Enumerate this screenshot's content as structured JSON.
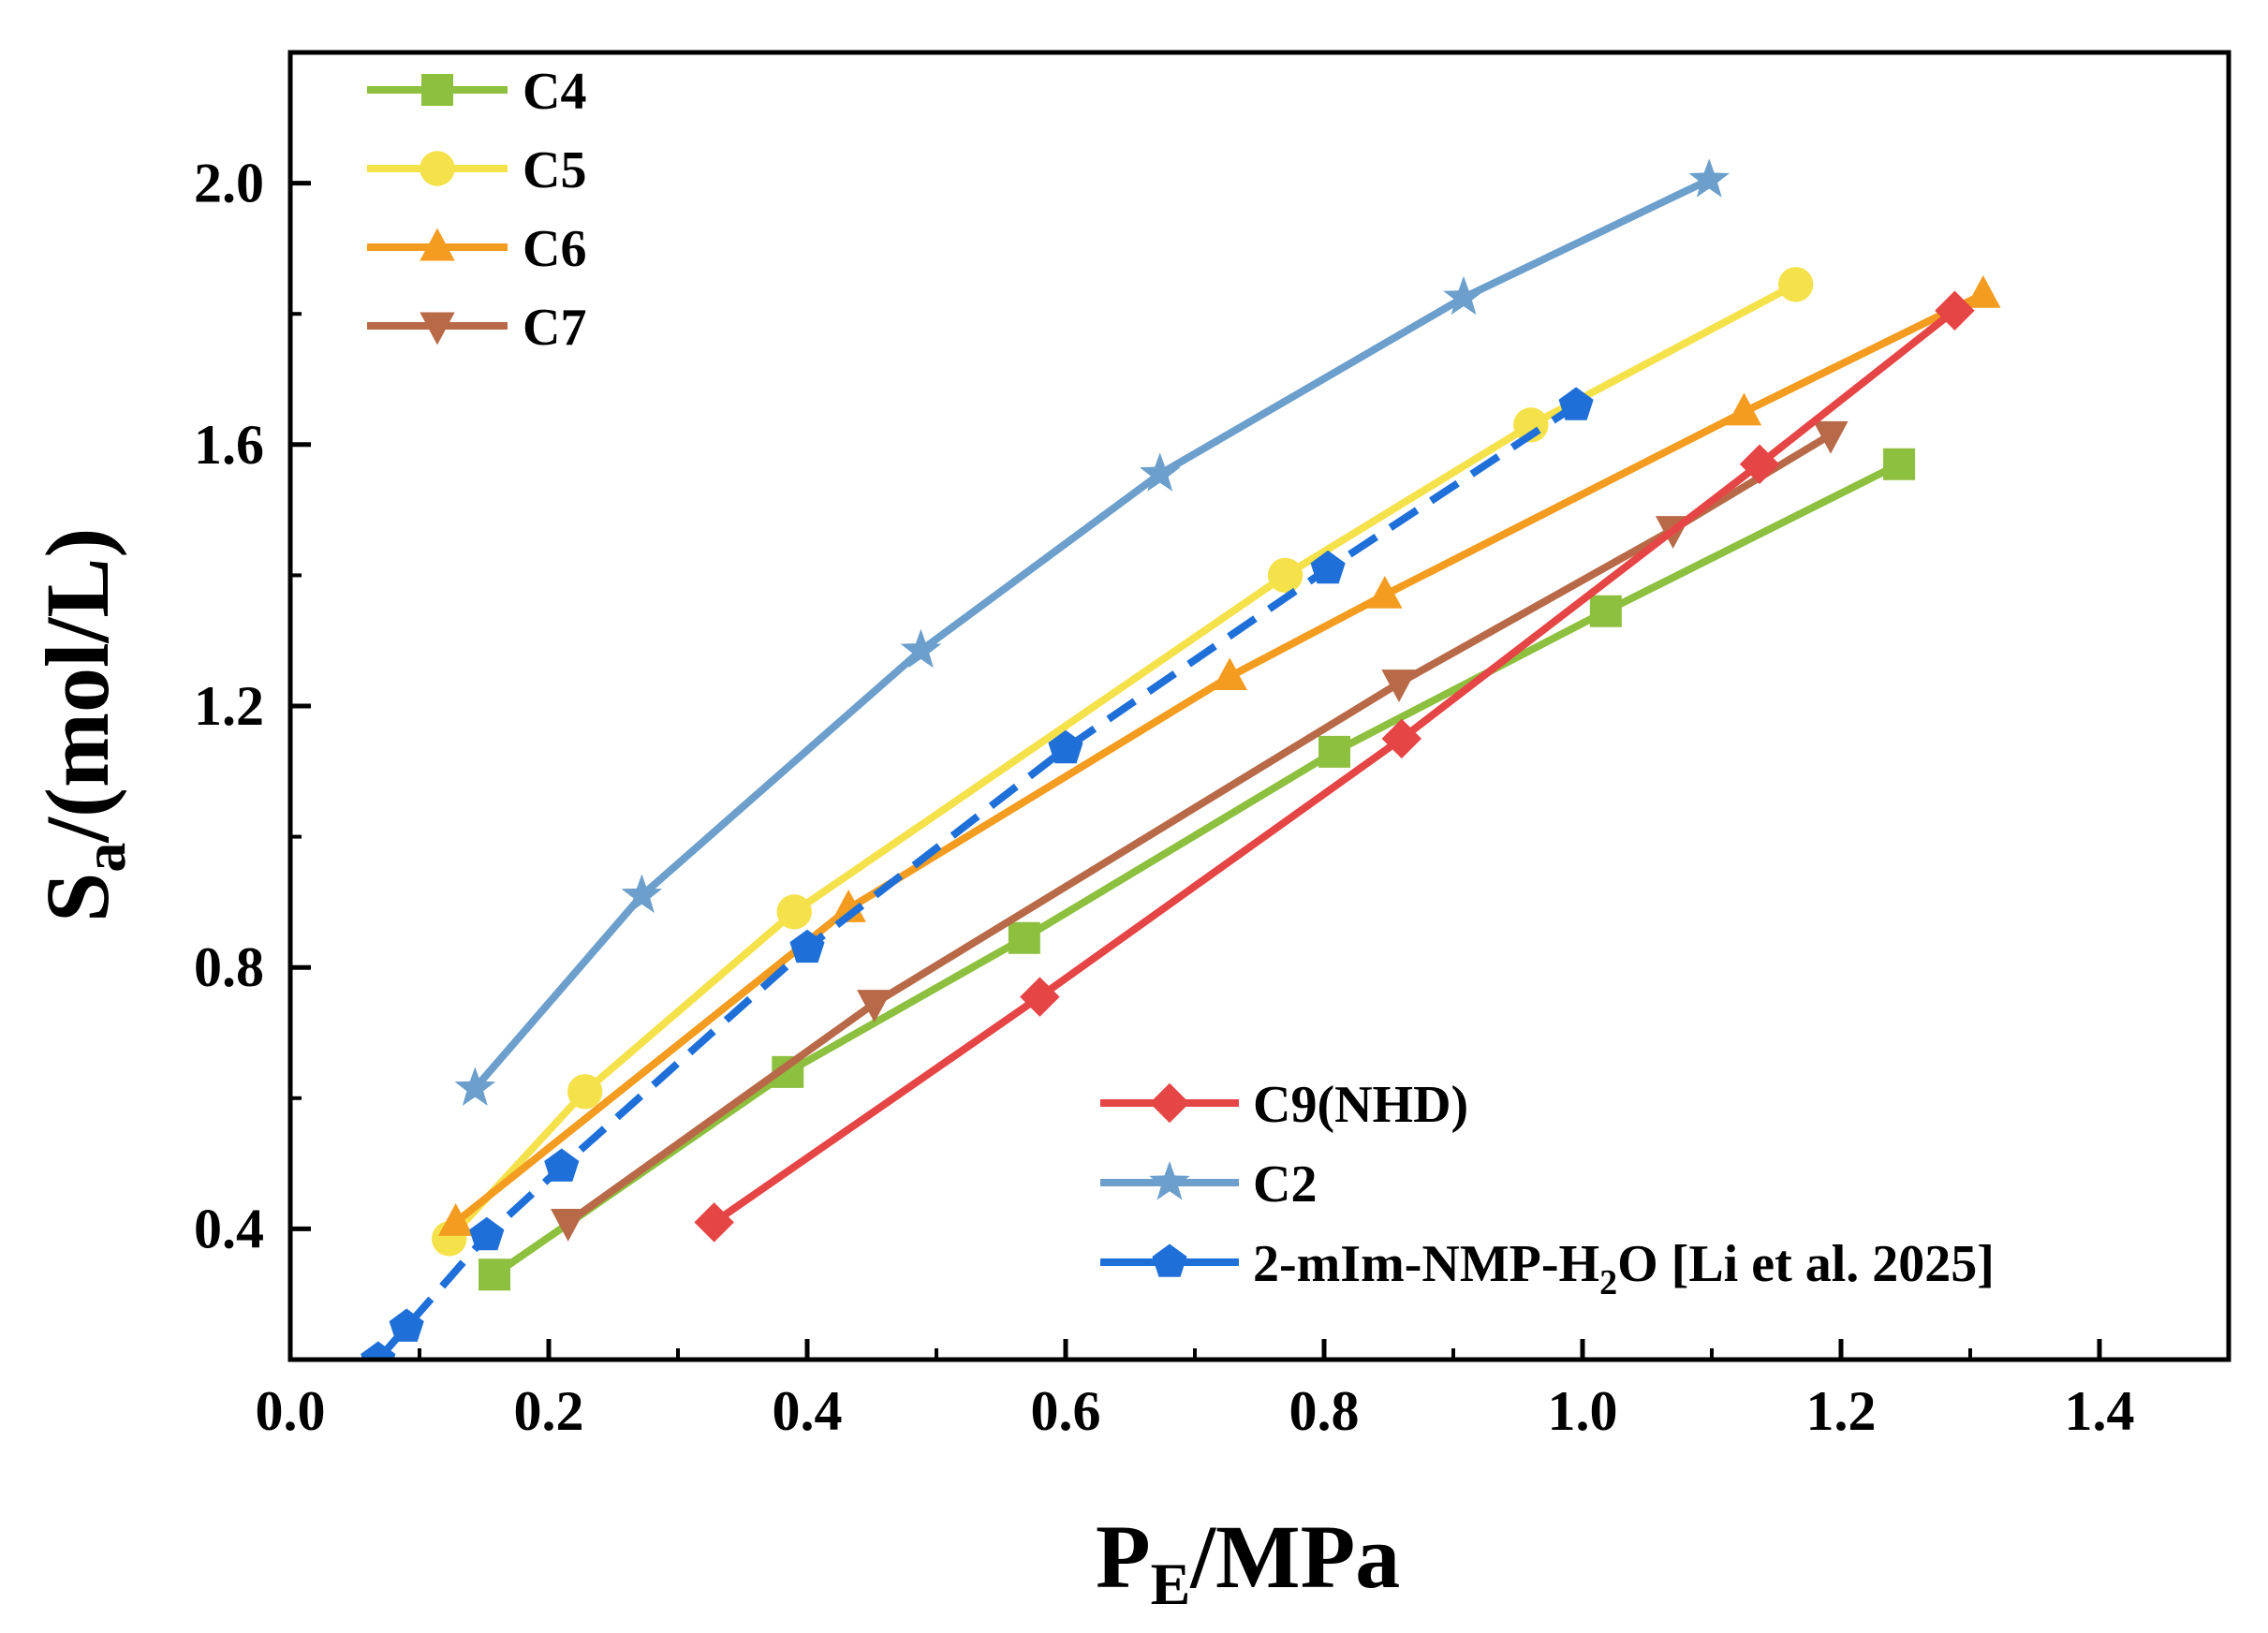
{
  "chart_data": {
    "type": "line",
    "xlabel": {
      "main": "P",
      "sub": "E",
      "rest": "/MPa"
    },
    "ylabel": {
      "main": "S",
      "sub": "a",
      "rest": "/(mol/L)"
    },
    "xlim": [
      0.0,
      1.5
    ],
    "ylim": [
      0.2,
      2.2
    ],
    "xticks": [
      {
        "value": 0.0,
        "label": "0.0"
      },
      {
        "value": 0.2,
        "label": "0.2"
      },
      {
        "value": 0.4,
        "label": "0.4"
      },
      {
        "value": 0.6,
        "label": "0.6"
      },
      {
        "value": 0.8,
        "label": "0.8"
      },
      {
        "value": 1.0,
        "label": "1.0"
      },
      {
        "value": 1.2,
        "label": "1.2"
      },
      {
        "value": 1.4,
        "label": "1.4"
      }
    ],
    "yticks": [
      {
        "value": 0.4,
        "label": "0.4"
      },
      {
        "value": 0.8,
        "label": "0.8"
      },
      {
        "value": 1.2,
        "label": "1.2"
      },
      {
        "value": 1.6,
        "label": "1.6"
      },
      {
        "value": 2.0,
        "label": "2.0"
      }
    ],
    "grid": false,
    "series": [
      {
        "name": "C4",
        "color": "#8DC03E",
        "marker": "square",
        "dashed": false,
        "x": [
          0.158,
          0.385,
          0.568,
          0.808,
          1.018,
          1.245
        ],
        "y": [
          0.33,
          0.64,
          0.845,
          1.13,
          1.345,
          1.57
        ]
      },
      {
        "name": "C5",
        "color": "#F5E14A",
        "marker": "circle",
        "dashed": false,
        "x": [
          0.123,
          0.228,
          0.39,
          0.77,
          0.96,
          1.165
        ],
        "y": [
          0.385,
          0.61,
          0.885,
          1.4,
          1.63,
          1.845
        ]
      },
      {
        "name": "C6",
        "color": "#F39C1F",
        "marker": "triangle-up",
        "dashed": false,
        "x": [
          0.128,
          0.432,
          0.727,
          0.847,
          1.125,
          1.31
        ],
        "y": [
          0.41,
          0.89,
          1.245,
          1.37,
          1.65,
          1.83
        ]
      },
      {
        "name": "C7",
        "color": "#B86A48",
        "marker": "triangle-down",
        "dashed": false,
        "x": [
          0.215,
          0.452,
          0.858,
          1.07,
          1.192
        ],
        "y": [
          0.41,
          0.745,
          1.235,
          1.47,
          1.615
        ]
      },
      {
        "name": "C9(NHD)",
        "color": "#E64545",
        "marker": "diamond",
        "dashed": false,
        "x": [
          0.328,
          0.58,
          0.86,
          1.137,
          1.288
        ],
        "y": [
          0.41,
          0.755,
          1.15,
          1.57,
          1.805
        ]
      },
      {
        "name": "C2",
        "color": "#6C9FCC",
        "marker": "star",
        "dashed": false,
        "x": [
          0.143,
          0.272,
          0.488,
          0.673,
          0.908,
          1.098
        ],
        "y": [
          0.615,
          0.91,
          1.285,
          1.555,
          1.825,
          2.005
        ]
      },
      {
        "name": "2-mIm-NMP-H2O  [Li et al. 2025]",
        "color": "#1F6FD9",
        "marker": "pentagon",
        "dashed": true,
        "x": [
          0.068,
          0.09,
          0.152,
          0.21,
          0.4,
          0.6,
          0.803,
          0.995
        ],
        "y": [
          0.2,
          0.25,
          0.39,
          0.495,
          0.83,
          1.135,
          1.41,
          1.66
        ]
      }
    ],
    "legends": [
      {
        "placement": "top-left",
        "entries": [
          "C4",
          "C5",
          "C6",
          "C7"
        ]
      },
      {
        "placement": "bottom-right",
        "entries": [
          "C9(NHD)",
          "C2",
          "2-mIm-NMP-H2O  [Li et al. 2025]"
        ]
      }
    ],
    "legend_text": {
      "C4": "C4",
      "C5": "C5",
      "C6": "C6",
      "C7": "C7",
      "C9(NHD)": "C9(NHD)",
      "C2": " C2",
      "mim": {
        "pre": "2-mIm-NMP-H",
        "sub": "2",
        "post": "O  [Li et al. 2025]"
      }
    }
  }
}
